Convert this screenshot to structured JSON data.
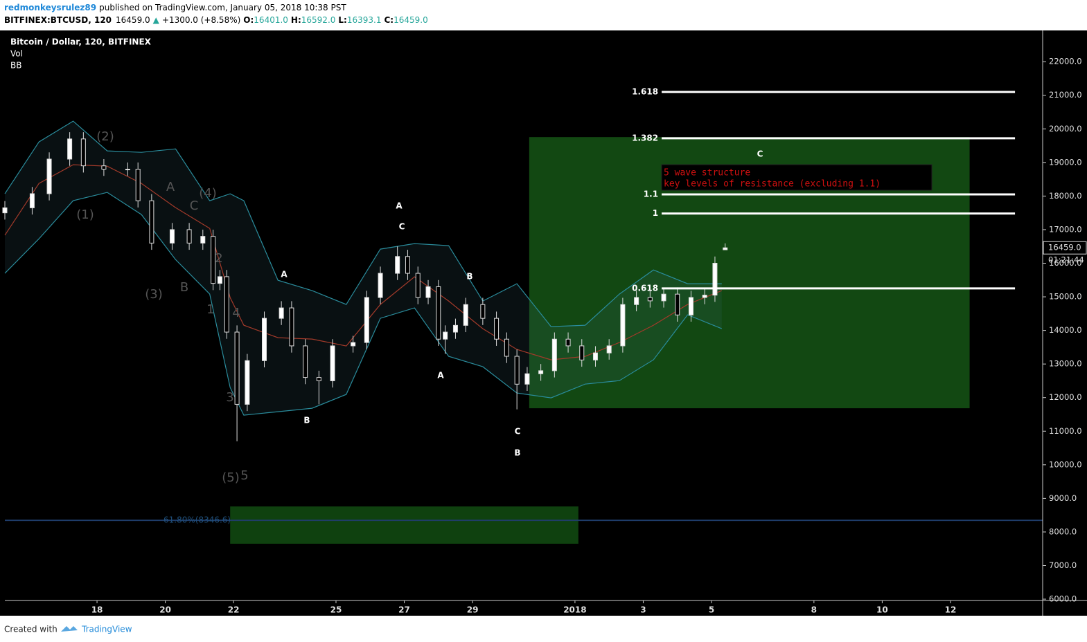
{
  "header": {
    "author": "redmonkeysrulez89",
    "published": "published on TradingView.com, January 05, 2018 10:38 PST",
    "symbol": "BITFINEX:BTCUSD, 120",
    "last": "16459.0",
    "arrow": "▲",
    "change": "+1300.0 (+8.58%)",
    "o_label": "O:",
    "open": "16401.0",
    "h_label": "H:",
    "high": "16592.0",
    "l_label": "L:",
    "low": "16393.1",
    "c_label": "C:",
    "close": "16459.0"
  },
  "legend": [
    "Bitcoin / Dollar, 120, BITFINEX",
    "Vol",
    "BB"
  ],
  "footer": {
    "created": "Created with",
    "brand": "TradingView"
  },
  "chart_data": {
    "type": "candlestick",
    "xlim": [
      15.3,
      45.7
    ],
    "ylim": [
      5960,
      22930
    ],
    "xticks": [
      18,
      20,
      22,
      25,
      27,
      29,
      {
        "value": 32,
        "label": "2018"
      },
      {
        "value": 34,
        "label": "3"
      },
      {
        "value": 36,
        "label": "5"
      },
      {
        "value": 39,
        "label": "8"
      },
      {
        "value": 41,
        "label": "10"
      },
      {
        "value": 43,
        "label": "12"
      }
    ],
    "yticks": [
      {
        "value": 6000,
        "label": "6000.0"
      },
      {
        "value": 7000,
        "label": "7000.0"
      },
      {
        "value": 8000,
        "label": "8000.0"
      },
      {
        "value": 9000,
        "label": "9000.0"
      },
      {
        "value": 10000,
        "label": "10000.0"
      },
      {
        "value": 11000,
        "label": "11000.0"
      },
      {
        "value": 12000,
        "label": "12000.0"
      },
      {
        "value": 13000,
        "label": "13000.0"
      },
      {
        "value": 14000,
        "label": "14000.0"
      },
      {
        "value": 15000,
        "label": "15000.0"
      },
      {
        "value": 16000,
        "label": "16000.0"
      },
      {
        "value": 17000,
        "label": "17000.0"
      },
      {
        "value": 18000,
        "label": "18000.0"
      },
      {
        "value": 19000,
        "label": "19000.0"
      },
      {
        "value": 20000,
        "label": "20000.0"
      },
      {
        "value": 21000,
        "label": "21000.0"
      },
      {
        "value": 22000,
        "label": "22000.0"
      }
    ],
    "x": [
      15.3,
      16.1,
      16.6,
      17.2,
      17.6,
      18.2,
      18.9,
      19.2,
      19.6,
      20.2,
      20.7,
      21.1,
      21.4,
      21.6,
      21.8,
      22.1,
      22.4,
      22.9,
      23.4,
      23.7,
      24.1,
      24.5,
      24.9,
      25.5,
      25.9,
      26.3,
      26.8,
      27.1,
      27.4,
      27.7,
      28.0,
      28.2,
      28.5,
      28.8,
      29.3,
      29.7,
      30.0,
      30.3,
      30.6,
      31.0,
      31.4,
      31.8,
      32.2,
      32.6,
      33.0,
      33.4,
      33.8,
      34.2,
      34.6,
      35.0,
      35.4,
      35.8,
      36.1,
      36.4
    ],
    "open": [
      17500,
      17650,
      18070,
      19100,
      19700,
      18900,
      18800,
      18800,
      17860,
      16600,
      17000,
      16600,
      16800,
      15400,
      15600,
      13950,
      11800,
      13100,
      14360,
      14670,
      13540,
      12600,
      12500,
      13540,
      13640,
      14980,
      15700,
      16200,
      15700,
      14980,
      15300,
      13740,
      13950,
      14150,
      14770,
      14360,
      13740,
      13230,
      12400,
      12710,
      12800,
      13740,
      13540,
      13120,
      13330,
      13540,
      14770,
      14980,
      14880,
      15080,
      14460,
      14980,
      15050,
      16401
    ],
    "high": [
      17850,
      18270,
      19300,
      19900,
      19900,
      19100,
      19000,
      19000,
      18060,
      17200,
      17200,
      17000,
      17000,
      15800,
      15800,
      14150,
      13300,
      14560,
      14870,
      14870,
      13740,
      12800,
      13740,
      13840,
      15180,
      15900,
      16500,
      16400,
      15900,
      15500,
      15500,
      14150,
      14350,
      14970,
      14970,
      14560,
      13940,
      13430,
      12910,
      13000,
      13940,
      13940,
      13740,
      13530,
      13740,
      14970,
      15180,
      15180,
      15280,
      15280,
      15180,
      15250,
      16200,
      16592
    ],
    "low": [
      17300,
      17450,
      17870,
      18900,
      18700,
      18600,
      18600,
      17660,
      16400,
      16400,
      16400,
      16400,
      15200,
      15200,
      13750,
      10700,
      11600,
      12900,
      14160,
      13340,
      12400,
      11800,
      12300,
      13340,
      13440,
      14780,
      15500,
      15500,
      14780,
      14780,
      13540,
      13300,
      13750,
      13950,
      14160,
      13540,
      13030,
      11650,
      12200,
      12500,
      12600,
      13340,
      12920,
      12920,
      13130,
      13340,
      14570,
      14680,
      14680,
      14260,
      14260,
      14780,
      14850,
      16393
    ],
    "close": [
      17650,
      18070,
      19100,
      19700,
      18900,
      18800,
      18800,
      17860,
      16600,
      17000,
      16600,
      16800,
      15400,
      15600,
      13950,
      11800,
      13100,
      14360,
      14670,
      13540,
      12600,
      12500,
      13540,
      13640,
      14980,
      15700,
      16200,
      15700,
      14980,
      15300,
      13740,
      13950,
      14150,
      14770,
      14360,
      13740,
      13230,
      12400,
      12710,
      12800,
      13740,
      13540,
      13120,
      13330,
      13540,
      14770,
      14980,
      14880,
      15080,
      14460,
      14980,
      15050,
      16000,
      16459
    ],
    "bands": {
      "x": [
        15.3,
        16.3,
        17.3,
        18.3,
        19.3,
        20.3,
        21.3,
        21.9,
        22.3,
        23.3,
        24.3,
        25.3,
        26.3,
        27.3,
        28.3,
        29.3,
        30.3,
        31.3,
        32.3,
        33.3,
        34.3,
        35.3,
        36.3
      ],
      "upper": [
        18067,
        19612,
        20230,
        19344,
        19302,
        19405,
        17861,
        18067,
        17861,
        15493,
        15184,
        14772,
        16419,
        16584,
        16522,
        14875,
        15390,
        14113,
        14154,
        15081,
        15801,
        15390,
        15390
      ],
      "basis": [
        16831,
        18376,
        18932,
        18890,
        18376,
        17655,
        17037,
        14978,
        14154,
        13783,
        13742,
        13536,
        14772,
        15596,
        14875,
        14051,
        13433,
        13124,
        13227,
        13639,
        14154,
        14772,
        15184
      ],
      "lower": [
        15699,
        16728,
        17861,
        18108,
        17449,
        16110,
        15081,
        12301,
        11477,
        11580,
        11683,
        12095,
        14360,
        14669,
        13227,
        12918,
        12136,
        11992,
        12403,
        12506,
        13124,
        14463,
        14051
      ]
    },
    "zones": [
      {
        "x": [
          30.66,
          43.56
        ],
        "y": [
          11683,
          19755
        ]
      },
      {
        "x": [
          21.9,
          32.1
        ],
        "y": [
          7650,
          8760
        ]
      }
    ],
    "fib_range": [
      34.54,
      44.89
    ],
    "fib_levels": [
      {
        "ratio": 1.618,
        "price": 21100
      },
      {
        "ratio": 1.382,
        "price": 19720
      },
      {
        "ratio": 1.1,
        "price": 18050
      },
      {
        "ratio": 1,
        "price": 17480
      },
      {
        "ratio": 0.618,
        "price": 15250
      }
    ],
    "retracement": {
      "value": 8346.6,
      "label": "61.80%(8346.6)"
    },
    "note": [
      "5 wave structure",
      "key levels of resistance (excluding 1.1)"
    ],
    "wave_labels": [
      "(2)",
      "(1)",
      "(4)",
      "(3)",
      "(5)",
      "5",
      "A",
      "B",
      "C",
      "2",
      "1",
      "4",
      "3",
      "A",
      "B",
      "A",
      "C",
      "B",
      "A",
      "C",
      "B",
      "C"
    ],
    "last_price": {
      "value": 16459,
      "label": "16459.0"
    },
    "countdown": "01:21:44"
  }
}
